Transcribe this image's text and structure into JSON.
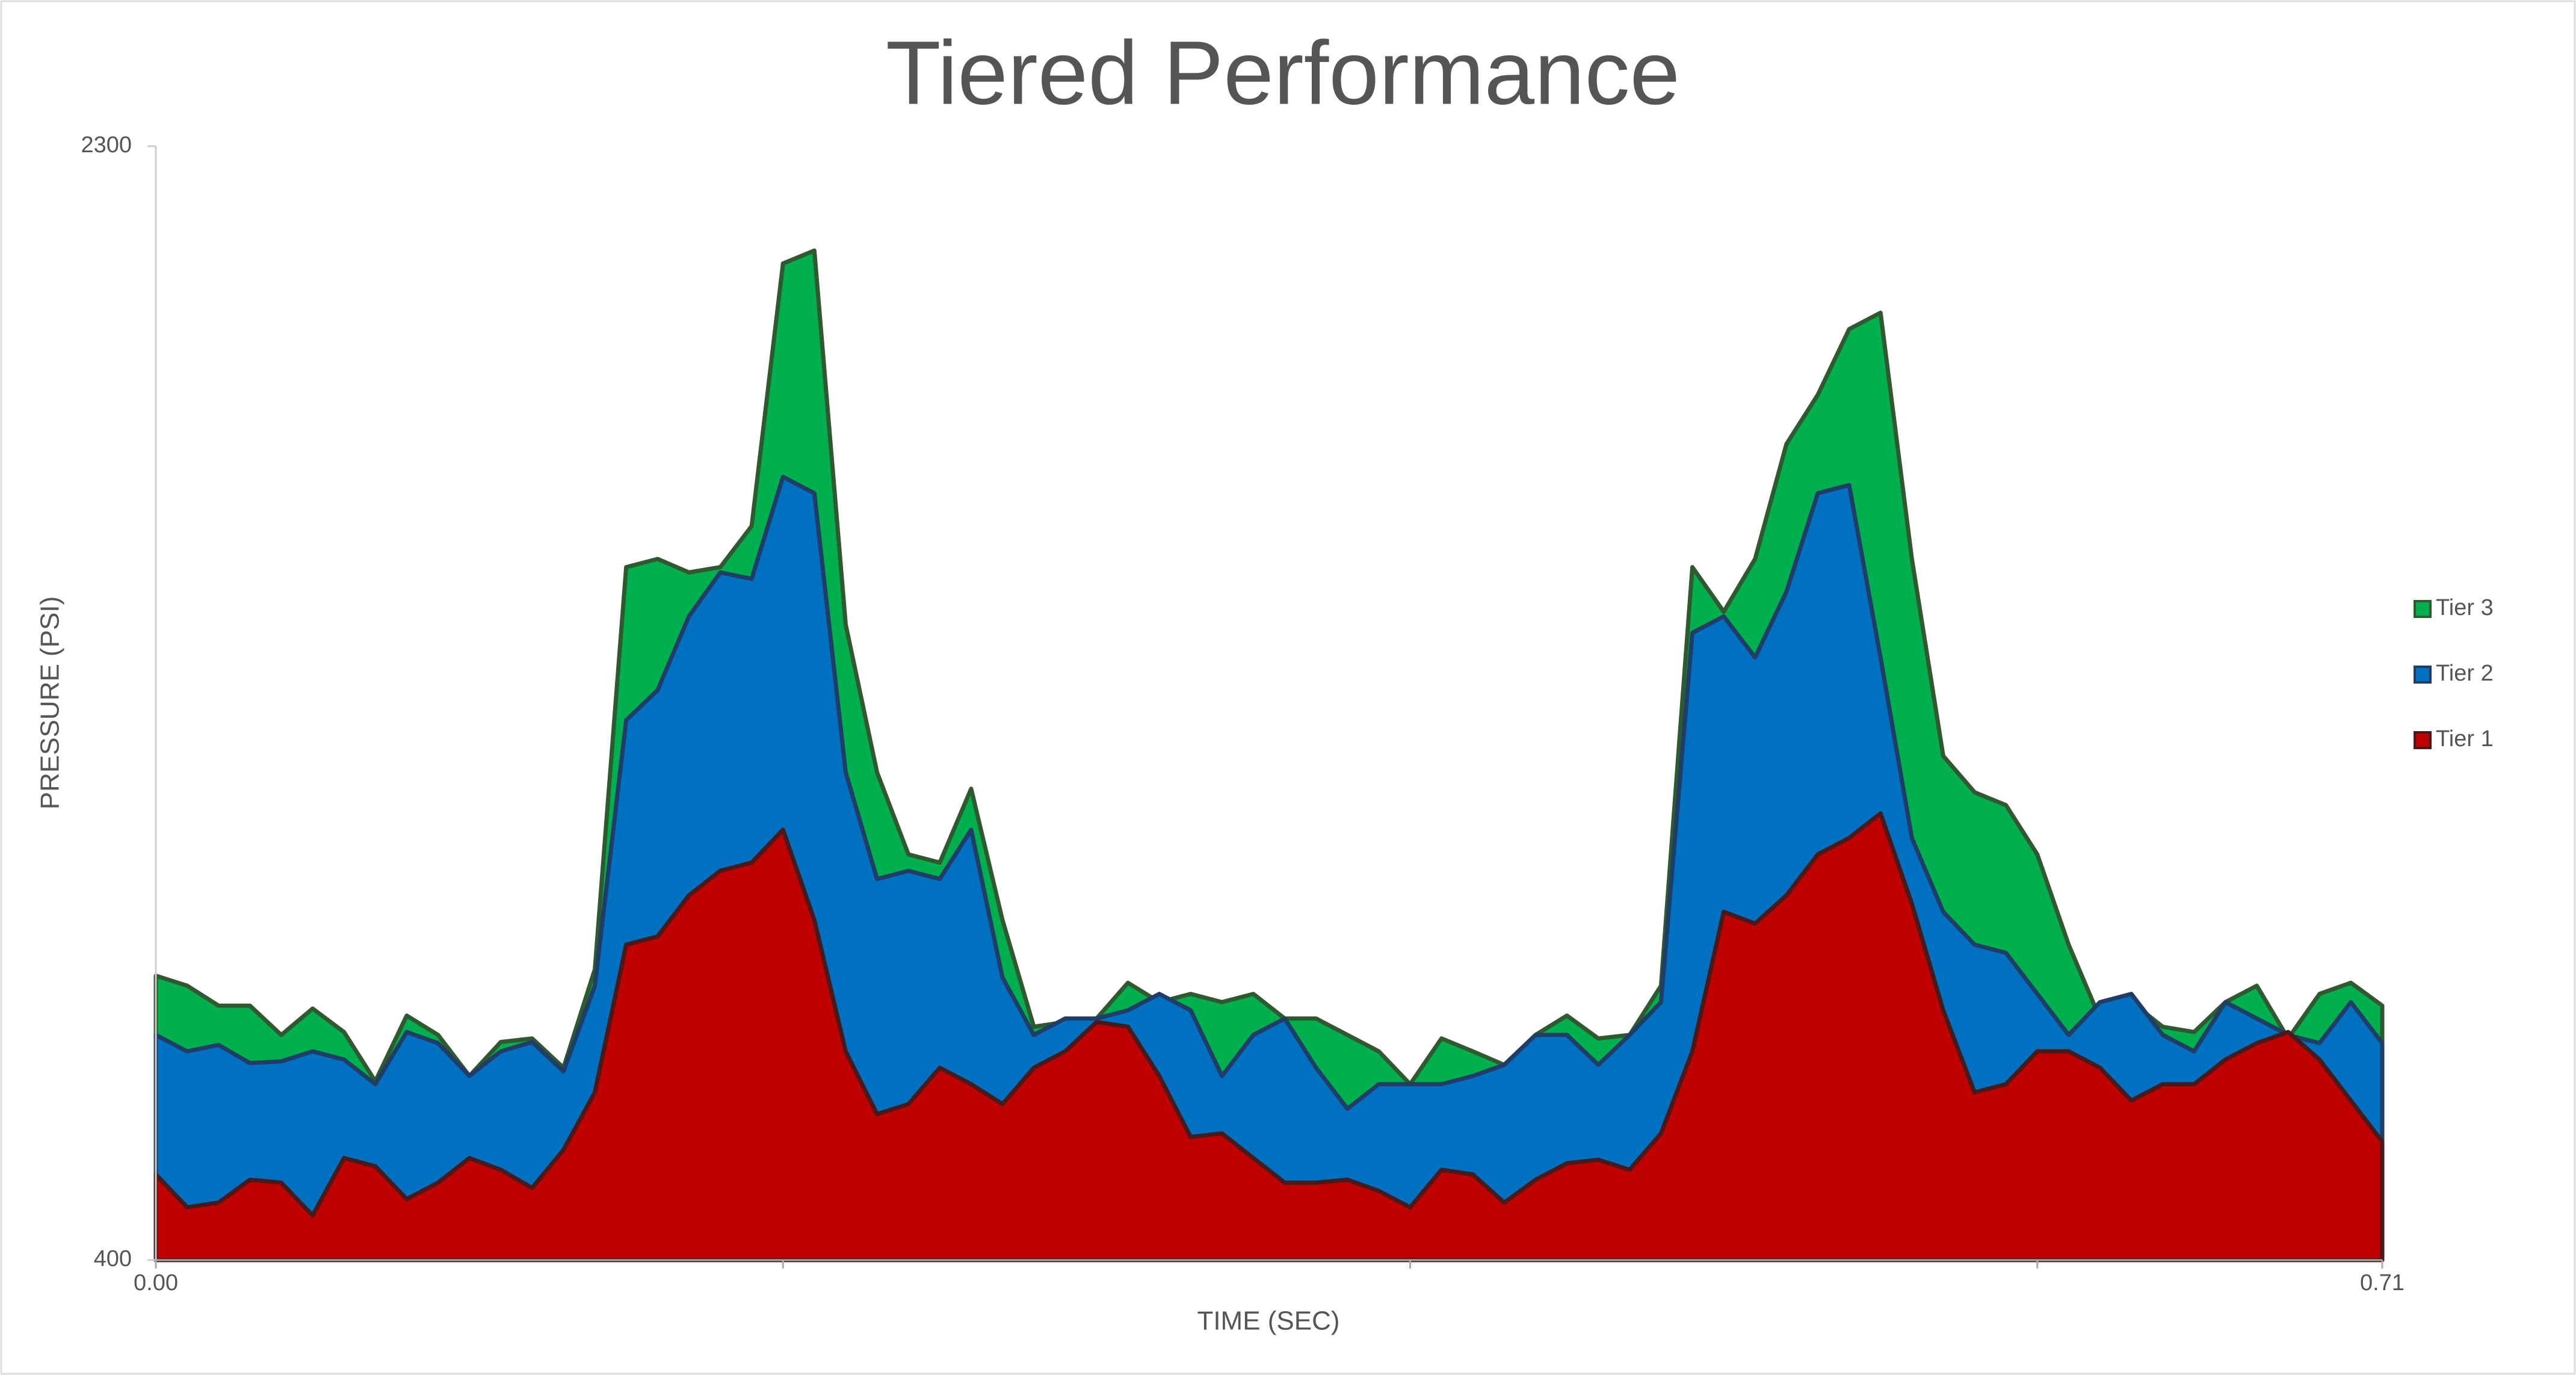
{
  "chart_data": {
    "type": "area",
    "title": "Tiered Performance",
    "x_label": "TIME (SEC)",
    "y_label": "PRESSURE (PSI)",
    "x": [
      0,
      0.01,
      0.02,
      0.03,
      0.04,
      0.05,
      0.06,
      0.07,
      0.08,
      0.09,
      0.1,
      0.11,
      0.12,
      0.13,
      0.14,
      0.15,
      0.16,
      0.17,
      0.18,
      0.19,
      0.2,
      0.21,
      0.22,
      0.23,
      0.24,
      0.25,
      0.26,
      0.27,
      0.28,
      0.29,
      0.3,
      0.31,
      0.32,
      0.33,
      0.34,
      0.35,
      0.36,
      0.37,
      0.38,
      0.39,
      0.4,
      0.41,
      0.42,
      0.43,
      0.44,
      0.45,
      0.46,
      0.47,
      0.48,
      0.49,
      0.5,
      0.51,
      0.52,
      0.53,
      0.54,
      0.55,
      0.56,
      0.57,
      0.58,
      0.59,
      0.6,
      0.61,
      0.62,
      0.63,
      0.64,
      0.65,
      0.66,
      0.67,
      0.68,
      0.69,
      0.7,
      0.71
    ],
    "series": [
      {
        "name": "Tier 3",
        "color": "#00b04f",
        "stroke": "#2f5a2f",
        "values": [
          885,
          868,
          834,
          834,
          784,
          829,
          789,
          705,
          817,
          784,
          714,
          772,
          778,
          728,
          896,
          1582,
          1596,
          1573,
          1582,
          1652,
          2100,
          2122,
          1484,
          1232,
          1092,
          1078,
          1204,
          980,
          798,
          806,
          812,
          873,
          840,
          854,
          840,
          854,
          812,
          812,
          784,
          756,
          700,
          778,
          756,
          733,
          784,
          817,
          778,
          784,
          868,
          1582,
          1506,
          1596,
          1792,
          1876,
          1988,
          2016,
          1596,
          1260,
          1198,
          1176,
          1092,
          938,
          812,
          840,
          798,
          789,
          840,
          868,
          778,
          854,
          873,
          834
        ]
      },
      {
        "name": "Tier 2",
        "color": "#0070c0",
        "stroke": "#1f3d66",
        "values": [
          784,
          756,
          767,
          736,
          739,
          756,
          742,
          700,
          789,
          770,
          714,
          756,
          772,
          722,
          868,
          1321,
          1372,
          1498,
          1573,
          1562,
          1736,
          1708,
          1232,
          1050,
          1064,
          1050,
          1134,
          882,
          784,
          812,
          812,
          826,
          854,
          826,
          714,
          784,
          812,
          728,
          658,
          700,
          700,
          700,
          714,
          733,
          784,
          784,
          733,
          784,
          840,
          1470,
          1498,
          1428,
          1540,
          1708,
          1722,
          1428,
          1120,
          994,
          938,
          924,
          854,
          784,
          840,
          854,
          784,
          756,
          840,
          812,
          784,
          770,
          840,
          770
        ]
      },
      {
        "name": "Tier 1",
        "color": "#c00000",
        "stroke": "#4a1a1a",
        "values": [
          546,
          490,
          498,
          537,
          532,
          476,
          574,
          560,
          504,
          532,
          574,
          554,
          523,
          588,
          686,
          938,
          952,
          1022,
          1064,
          1078,
          1134,
          980,
          756,
          649,
          666,
          728,
          700,
          666,
          728,
          756,
          806,
          798,
          714,
          610,
          616,
          574,
          532,
          532,
          537,
          518,
          490,
          554,
          546,
          498,
          537,
          565,
          571,
          554,
          616,
          756,
          994,
          974,
          1022,
          1092,
          1120,
          1162,
          1008,
          826,
          686,
          700,
          756,
          756,
          728,
          672,
          700,
          700,
          742,
          770,
          789,
          742,
          672,
          602
        ]
      }
    ],
    "xlim": [
      0,
      0.71
    ],
    "xticks": [
      {
        "value": 0,
        "label": "0.00"
      },
      0.71
    ],
    "xminor": [
      0.2,
      0.4,
      0.6
    ],
    "ylim": [
      400,
      2300
    ],
    "yticks": [
      400,
      2300
    ],
    "legend": "right"
  }
}
